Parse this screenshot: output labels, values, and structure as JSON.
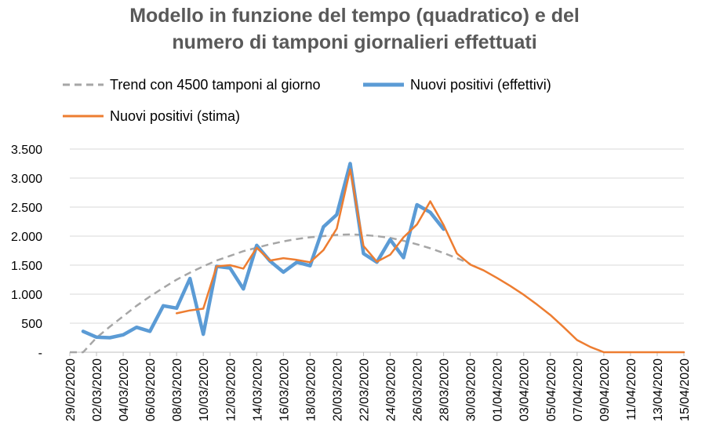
{
  "chart_data": {
    "type": "line",
    "title": "Modello in funzione del tempo (quadratico) e del numero di tamponi giornalieri effettuati",
    "title_lines": [
      "Modello in funzione del tempo (quadratico) e del",
      "numero di tamponi giornalieri effettuati"
    ],
    "xlabel": "",
    "ylabel": "",
    "ylim": [
      0,
      3500
    ],
    "yticks": [
      0,
      500,
      1000,
      1500,
      2000,
      2500,
      3000,
      3500
    ],
    "ytick_labels": [
      "-",
      "500",
      "1.000",
      "1.500",
      "2.000",
      "2.500",
      "3.000",
      "3.500"
    ],
    "x_tick_labels": [
      "29/02/2020",
      "02/03/2020",
      "04/03/2020",
      "06/03/2020",
      "08/03/2020",
      "10/03/2020",
      "12/03/2020",
      "14/03/2020",
      "16/03/2020",
      "18/03/2020",
      "20/03/2020",
      "22/03/2020",
      "24/03/2020",
      "26/03/2020",
      "28/03/2020",
      "30/03/2020",
      "01/04/2020",
      "03/04/2020",
      "05/04/2020",
      "07/04/2020",
      "09/04/2020",
      "11/04/2020",
      "13/04/2020",
      "15/04/2020"
    ],
    "x_range": [
      "29/02/2020",
      "15/04/2020"
    ],
    "grid": "horizontal",
    "legend_position": "top",
    "series": [
      {
        "name": "Trend con 4500 tamponi al giorno",
        "style": "dashed",
        "color": "#a6a6a6",
        "x": [
          "29/02/2020",
          "01/03/2020",
          "02/03/2020",
          "03/03/2020",
          "04/03/2020",
          "05/03/2020",
          "06/03/2020",
          "07/03/2020",
          "08/03/2020",
          "09/03/2020",
          "10/03/2020",
          "11/03/2020",
          "12/03/2020",
          "13/03/2020",
          "14/03/2020",
          "15/03/2020",
          "16/03/2020",
          "17/03/2020",
          "18/03/2020",
          "19/03/2020",
          "20/03/2020",
          "21/03/2020",
          "22/03/2020",
          "23/03/2020",
          "24/03/2020",
          "25/03/2020",
          "26/03/2020",
          "27/03/2020",
          "28/03/2020",
          "29/03/2020",
          "30/03/2020"
        ],
        "values": [
          0,
          0,
          250,
          440,
          620,
          800,
          960,
          1110,
          1250,
          1370,
          1480,
          1580,
          1660,
          1740,
          1800,
          1860,
          1910,
          1950,
          1980,
          2000,
          2020,
          2030,
          2020,
          2000,
          1970,
          1920,
          1860,
          1790,
          1710,
          1620,
          1520
        ]
      },
      {
        "name": "Nuovi positivi (effettivi)",
        "style": "solid",
        "color": "#5b9bd5",
        "x": [
          "01/03/2020",
          "02/03/2020",
          "03/03/2020",
          "04/03/2020",
          "05/03/2020",
          "06/03/2020",
          "07/03/2020",
          "08/03/2020",
          "09/03/2020",
          "10/03/2020",
          "11/03/2020",
          "12/03/2020",
          "13/03/2020",
          "14/03/2020",
          "15/03/2020",
          "16/03/2020",
          "17/03/2020",
          "18/03/2020",
          "19/03/2020",
          "20/03/2020",
          "21/03/2020",
          "22/03/2020",
          "23/03/2020",
          "24/03/2020",
          "25/03/2020",
          "26/03/2020",
          "27/03/2020",
          "28/03/2020"
        ],
        "values": [
          360,
          260,
          250,
          300,
          430,
          360,
          800,
          760,
          1270,
          310,
          1480,
          1450,
          1090,
          1840,
          1570,
          1380,
          1550,
          1490,
          2160,
          2370,
          3250,
          1700,
          1550,
          1940,
          1630,
          2540,
          2410,
          2120
        ]
      },
      {
        "name": "Nuovi positivi (stima)",
        "style": "solid",
        "color": "#ed7d31",
        "x": [
          "08/03/2020",
          "09/03/2020",
          "10/03/2020",
          "11/03/2020",
          "12/03/2020",
          "13/03/2020",
          "14/03/2020",
          "15/03/2020",
          "16/03/2020",
          "17/03/2020",
          "18/03/2020",
          "19/03/2020",
          "20/03/2020",
          "21/03/2020",
          "22/03/2020",
          "23/03/2020",
          "24/03/2020",
          "25/03/2020",
          "26/03/2020",
          "27/03/2020",
          "28/03/2020",
          "29/03/2020",
          "30/03/2020",
          "31/03/2020",
          "01/04/2020",
          "02/04/2020",
          "03/04/2020",
          "04/04/2020",
          "05/04/2020",
          "06/04/2020",
          "07/04/2020",
          "08/04/2020",
          "09/04/2020",
          "10/04/2020",
          "11/04/2020",
          "12/04/2020",
          "13/04/2020",
          "14/04/2020",
          "15/04/2020"
        ],
        "values": [
          670,
          720,
          750,
          1480,
          1500,
          1440,
          1800,
          1580,
          1620,
          1590,
          1550,
          1760,
          2130,
          3150,
          1830,
          1560,
          1680,
          1980,
          2200,
          2600,
          2190,
          1700,
          1510,
          1410,
          1280,
          1140,
          990,
          820,
          640,
          430,
          210,
          90,
          0,
          0,
          0,
          0,
          0,
          0,
          0
        ]
      }
    ]
  }
}
